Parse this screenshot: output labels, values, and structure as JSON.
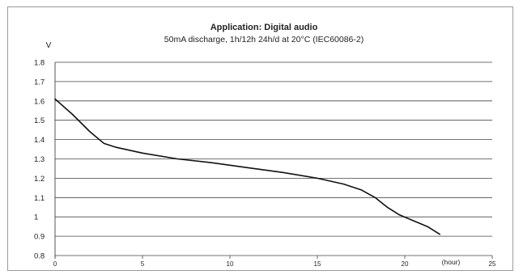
{
  "chart_data": {
    "type": "line",
    "title": "Application: Digital audio",
    "subtitle": "50mA discharge, 1h/12h 24h/d at 20°C (IEC60086-2)",
    "ylabel": "V",
    "xlabel": "(hour)",
    "xlim": [
      0,
      25
    ],
    "ylim": [
      0.8,
      1.8
    ],
    "x_ticks": [
      0,
      5,
      10,
      15,
      20,
      25
    ],
    "y_ticks": [
      "1.8",
      "1.7",
      "1.6",
      "1.5",
      "1.4",
      "1.3",
      "1.2",
      "1.1",
      "1",
      "0.9",
      "0.8"
    ],
    "grid": "horizontal",
    "series": [
      {
        "x": [
          0,
          1,
          2,
          2.8,
          3.5,
          5,
          7,
          9,
          11,
          13,
          15,
          16.5,
          17.5,
          18.3,
          19,
          19.7,
          20.5,
          21.3,
          22
        ],
        "y": [
          1.61,
          1.53,
          1.44,
          1.38,
          1.36,
          1.33,
          1.3,
          1.28,
          1.255,
          1.23,
          1.2,
          1.17,
          1.14,
          1.1,
          1.05,
          1.01,
          0.98,
          0.95,
          0.91
        ]
      }
    ]
  },
  "colors": {
    "line": "#111111",
    "grid": "#444444",
    "border": "#9a9a9a"
  }
}
